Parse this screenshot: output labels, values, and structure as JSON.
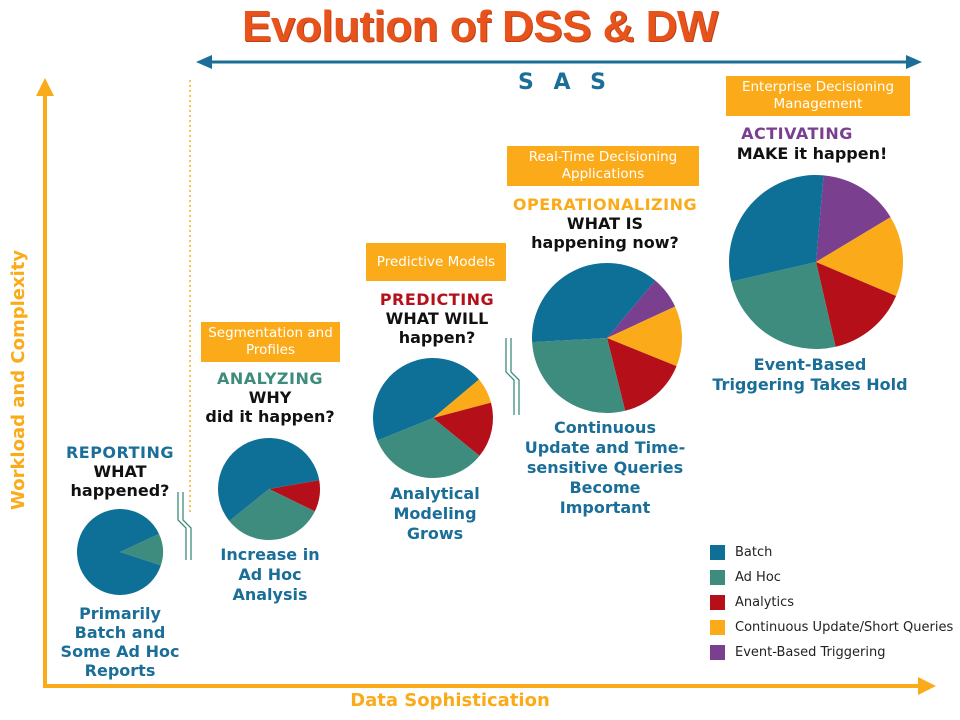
{
  "title": "Evolution of DSS & DW",
  "brand": "S A S",
  "axes": {
    "y_label": "Workload and Complexity",
    "x_label": "Data Sophistication"
  },
  "colors": {
    "batch": "#0e6f97",
    "ad_hoc": "#3e8c7e",
    "analytics": "#b5101a",
    "continuous": "#fbab1a",
    "event": "#7a3f8f",
    "orange": "#fbab1a",
    "teal_heading": "#3e8c7e",
    "red_heading": "#b5101a",
    "purple_heading": "#7a3f8f",
    "caption": "#1a6e98"
  },
  "stages": [
    {
      "id": "reporting",
      "box": "",
      "word": "REPORTING",
      "question": [
        "WHAT",
        "happened?"
      ],
      "caption": [
        "Primarily",
        "Batch and",
        "Some Ad Hoc",
        "Reports"
      ]
    },
    {
      "id": "analyzing",
      "box": "Segmentation and Profiles",
      "word": "ANALYZING",
      "question": [
        "WHY",
        "did it happen?"
      ],
      "caption": [
        "Increase in",
        "Ad Hoc",
        "Analysis"
      ]
    },
    {
      "id": "predicting",
      "box": "Predictive Models",
      "word": "PREDICTING",
      "question": [
        "WHAT WILL",
        "happen?"
      ],
      "caption": [
        "Analytical",
        "Modeling",
        "Grows"
      ]
    },
    {
      "id": "operationalizing",
      "box": "Real-Time Decisioning Applications",
      "word": "OPERATIONALIZING",
      "question": [
        "WHAT IS",
        "happening now?"
      ],
      "caption": [
        "Continuous",
        "Update and Time-",
        "sensitive Queries",
        "Become",
        "Important"
      ]
    },
    {
      "id": "activating",
      "box": "Enterprise Decisioning Management",
      "word": "ACTIVATING",
      "question": [
        "MAKE it happen!"
      ],
      "caption": [
        "Event-Based",
        "Triggering Takes Hold"
      ]
    }
  ],
  "pies": [
    {
      "stage": "reporting",
      "shares": {
        "batch": 88,
        "ad_hoc": 12,
        "analytics": 0,
        "continuous": 0,
        "event": 0
      }
    },
    {
      "stage": "analyzing",
      "shares": {
        "batch": 58,
        "ad_hoc": 32,
        "analytics": 10,
        "continuous": 0,
        "event": 0
      }
    },
    {
      "stage": "predicting",
      "shares": {
        "batch": 45,
        "ad_hoc": 33,
        "analytics": 15,
        "continuous": 7,
        "event": 0
      }
    },
    {
      "stage": "operationalizing",
      "shares": {
        "batch": 37,
        "ad_hoc": 28,
        "analytics": 15,
        "continuous": 13,
        "event": 7
      }
    },
    {
      "stage": "activating",
      "shares": {
        "batch": 30,
        "ad_hoc": 25,
        "analytics": 15,
        "continuous": 15,
        "event": 15
      }
    }
  ],
  "legend": [
    {
      "key": "batch",
      "label": "Batch"
    },
    {
      "key": "ad_hoc",
      "label": "Ad Hoc"
    },
    {
      "key": "analytics",
      "label": "Analytics"
    },
    {
      "key": "continuous",
      "label": "Continuous Update/Short Queries"
    },
    {
      "key": "event",
      "label": "Event-Based Triggering"
    }
  ]
}
